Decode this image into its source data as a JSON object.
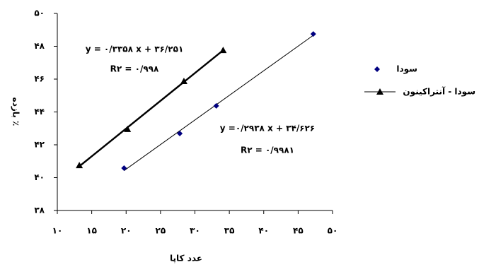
{
  "chart_data": {
    "type": "scatter",
    "x_label": "عدد کاپا",
    "y_label": "بازده ٪",
    "xlim": [
      10,
      50
    ],
    "xticks": [
      {
        "value": 10,
        "label": "۱۰"
      },
      {
        "value": 15,
        "label": "۱۵"
      },
      {
        "value": 20,
        "label": "۲۰"
      },
      {
        "value": 25,
        "label": "۲۵"
      },
      {
        "value": 30,
        "label": "۳۰"
      },
      {
        "value": 35,
        "label": "۳۵"
      },
      {
        "value": 40,
        "label": "۴۰"
      },
      {
        "value": 45,
        "label": "۴۵"
      },
      {
        "value": 50,
        "label": "۵۰"
      }
    ],
    "ylim": [
      38,
      50
    ],
    "yticks": [
      {
        "value": 38,
        "label": "۳۸"
      },
      {
        "value": 40,
        "label": "۴۰"
      },
      {
        "value": 42,
        "label": "۴۲"
      },
      {
        "value": 44,
        "label": "۴۴"
      },
      {
        "value": 46,
        "label": "۴۶"
      },
      {
        "value": 48,
        "label": "۴۸"
      },
      {
        "value": 50,
        "label": "۵۰"
      }
    ],
    "grid": false,
    "legend": "right",
    "series": [
      {
        "name": "سودا",
        "color": "#000080",
        "marker": "diamond",
        "trendline": true,
        "x": [
          19.7,
          27.8,
          33.1,
          47.2
        ],
        "values": [
          40.58,
          42.69,
          44.37,
          48.75
        ]
      },
      {
        "name": "سودا - آنتراکینون",
        "color": "#000000",
        "marker": "triangle",
        "trendline": true,
        "x": [
          13.2,
          20.2,
          28.4,
          34.1
        ],
        "values": [
          40.75,
          42.95,
          45.87,
          47.76
        ]
      }
    ],
    "annotations": [
      "y = ۰/۳۳۵۸ x + ۳۶/۲۵۱",
      "R۲ = ۰/۹۹۸",
      "y =۰/۲۹۳۸ x + ۳۴/۶۲۶",
      "R۲ = ۰/۹۹۸۱"
    ]
  }
}
